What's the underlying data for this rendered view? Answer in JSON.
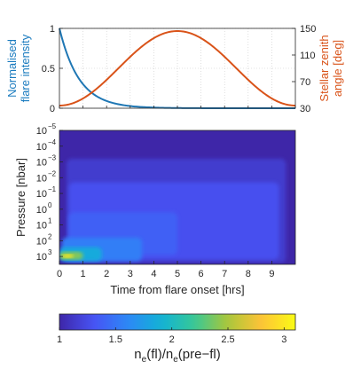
{
  "chart_data": [
    {
      "type": "line",
      "x": [
        0,
        0.5,
        1,
        1.5,
        2,
        2.5,
        3,
        3.5,
        4,
        4.5,
        5,
        5.5,
        6,
        6.5,
        7,
        7.5,
        8,
        8.5,
        9,
        9.5,
        10
      ],
      "series": [
        {
          "axis": "left",
          "color": "#1f77b4",
          "values": [
            1.0,
            0.55,
            0.3,
            0.17,
            0.09,
            0.05,
            0.03,
            0.016,
            0.009,
            0.005,
            0.003,
            0.002,
            0.001,
            0.0005,
            0.0003,
            0.0002,
            0.0001,
            0.0,
            0.0,
            0.0,
            0.0
          ]
        },
        {
          "axis": "right",
          "color": "#d95319",
          "values": [
            37,
            39,
            45,
            55,
            68,
            83,
            99,
            115,
            129,
            141,
            149,
            146,
            136,
            122,
            106,
            90,
            74,
            60,
            49,
            41,
            37
          ]
        }
      ],
      "xlim": [
        0,
        10
      ],
      "ylabel_left": "Normalised\nflare intensity",
      "yticks_left": [
        "0",
        "0.5",
        "1"
      ],
      "ylim_left": [
        0,
        1
      ],
      "ylabel_right": "Stellar zenith\nangle [deg]",
      "yticks_right": [
        "30",
        "70",
        "110",
        "150"
      ],
      "ylim_right": [
        30,
        150
      ],
      "grid": true
    },
    {
      "type": "heatmap",
      "xlabel": "Time from flare onset [hrs]",
      "xticks": [
        "0",
        "1",
        "2",
        "3",
        "4",
        "5",
        "6",
        "7",
        "8",
        "9"
      ],
      "xlim": [
        0,
        10
      ],
      "ylabel": "Pressure [nbar]",
      "yticks_base": "10",
      "yticks_exp": [
        "−5",
        "−4",
        "−3",
        "−2",
        "−1",
        "0",
        "1",
        "2",
        "3"
      ],
      "ylim_log10": [
        -5,
        3.5
      ],
      "colorbar": {
        "label_main": "n",
        "label_sub1": "e",
        "label_mid": "(fl)/n",
        "label_sub2": "e",
        "label_end": "(pre−fl)",
        "ticks": [
          "1",
          "1.5",
          "2",
          "2.5",
          "3"
        ],
        "range": [
          1,
          3.1
        ],
        "colormap": "parula"
      },
      "regions": [
        {
          "value": 1.0,
          "t0": 0.0,
          "t1": 10.0,
          "p0": -5.0,
          "p1": 3.5
        },
        {
          "value": 1.15,
          "t0": 0.3,
          "t1": 9.6,
          "p0": -3.2,
          "p1": 3.4
        },
        {
          "value": 1.28,
          "t0": 0.4,
          "t1": 9.3,
          "p0": -1.7,
          "p1": 3.2
        },
        {
          "value": 1.38,
          "t0": 0.4,
          "t1": 5.0,
          "p0": 0.2,
          "p1": 2.9
        },
        {
          "value": 1.55,
          "t0": 0.1,
          "t1": 3.5,
          "p0": 1.8,
          "p1": 3.3
        },
        {
          "value": 1.85,
          "t0": 0.0,
          "t1": 1.8,
          "p0": 2.4,
          "p1": 3.3
        },
        {
          "value": 2.4,
          "t0": 0.0,
          "t1": 1.0,
          "p0": 2.7,
          "p1": 3.2
        },
        {
          "value": 3.0,
          "t0": 0.1,
          "t1": 0.6,
          "p0": 2.85,
          "p1": 3.1
        }
      ]
    }
  ]
}
